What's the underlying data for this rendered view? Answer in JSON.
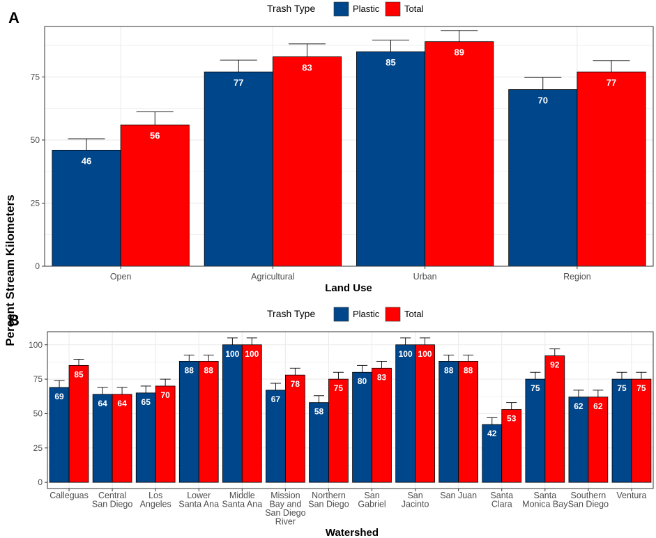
{
  "colors": {
    "plastic": "#00468b",
    "total": "#ff0000",
    "grid": "#ebebeb",
    "border": "#333333",
    "error": "#000000"
  },
  "y_axis_label": "Percent Stream Kilometers",
  "chart_data": [
    {
      "panel": "A",
      "type": "bar",
      "xlabel": "Land Use",
      "ylabel": "Percent Stream Kilometers",
      "ylim": [
        0,
        95
      ],
      "yticks": [
        0,
        25,
        50,
        75
      ],
      "legend": {
        "title": "Trash Type",
        "entries": [
          "Plastic",
          "Total"
        ],
        "placement": "top"
      },
      "categories": [
        "Open",
        "Agricultural",
        "Urban",
        "Region"
      ],
      "series": [
        {
          "name": "Plastic",
          "values": [
            46,
            77,
            85,
            70
          ],
          "err_upper": [
            50.5,
            81.7,
            89.6,
            74.8
          ]
        },
        {
          "name": "Total",
          "values": [
            56,
            83,
            89,
            77
          ],
          "err_upper": [
            61.2,
            88.1,
            93.4,
            81.5
          ]
        }
      ]
    },
    {
      "panel": "B",
      "type": "bar",
      "xlabel": "Watershed",
      "ylabel": "Percent Stream Kilometers",
      "ylim": [
        -4.5,
        109.5
      ],
      "yticks": [
        0,
        25,
        50,
        75,
        100
      ],
      "legend": {
        "title": "Trash Type",
        "entries": [
          "Plastic",
          "Total"
        ],
        "placement": "top"
      },
      "categories": [
        [
          "Calleguas"
        ],
        [
          "Central",
          "San Diego"
        ],
        [
          "Los",
          "Angeles"
        ],
        [
          "Lower",
          "Santa Ana"
        ],
        [
          "Middle",
          "Santa Ana"
        ],
        [
          "Mission",
          "Bay and",
          "San Diego",
          "River"
        ],
        [
          "Northern",
          "San Diego"
        ],
        [
          "San",
          "Gabriel"
        ],
        [
          "San",
          "Jacinto"
        ],
        [
          "San Juan"
        ],
        [
          "Santa",
          "Clara"
        ],
        [
          "Santa",
          "Monica Bay"
        ],
        [
          "Southern",
          "San Diego"
        ],
        [
          "Ventura"
        ]
      ],
      "series": [
        {
          "name": "Plastic",
          "values": [
            69,
            64,
            65,
            88,
            100,
            67,
            58,
            80,
            100,
            88,
            42,
            75,
            62,
            75
          ],
          "err_upper": [
            74,
            69,
            70,
            92.5,
            105,
            72,
            63,
            85,
            105,
            92.5,
            47,
            80,
            67,
            80
          ]
        },
        {
          "name": "Total",
          "values": [
            85,
            64,
            70,
            88,
            100,
            78,
            75,
            83,
            100,
            88,
            53,
            92,
            62,
            75
          ],
          "err_upper": [
            89.5,
            69,
            75,
            92.5,
            105,
            83,
            80,
            88,
            105,
            92.5,
            58,
            97,
            67,
            80
          ]
        }
      ]
    }
  ]
}
